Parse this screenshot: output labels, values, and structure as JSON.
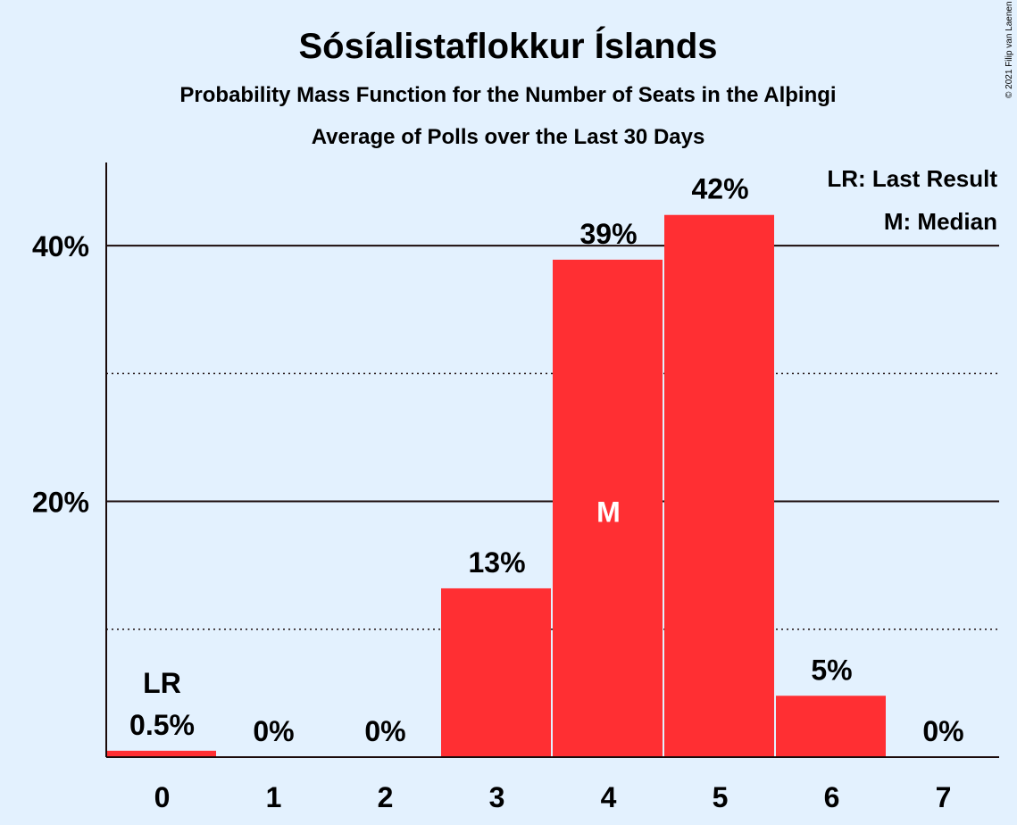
{
  "chart_data": {
    "type": "bar",
    "title": "Sósíalistaflokkur Íslands",
    "subtitle": "Probability Mass Function for the Number of Seats in the Alþingi",
    "subtitle2": "Average of Polls over the Last 30 Days",
    "categories": [
      "0",
      "1",
      "2",
      "3",
      "4",
      "5",
      "6",
      "7"
    ],
    "values": [
      0.5,
      0,
      0,
      13.2,
      38.9,
      42.4,
      4.8,
      0
    ],
    "value_labels": [
      "0.5%",
      "0%",
      "0%",
      "13%",
      "39%",
      "42%",
      "5%",
      "0%"
    ],
    "ylim": [
      0,
      46.5
    ],
    "y_ticks": [
      {
        "value": 20,
        "label": "20%"
      },
      {
        "value": 40,
        "label": "40%"
      }
    ],
    "minor_gridlines": [
      10,
      30
    ],
    "grid": true,
    "last_result_index": 0,
    "last_result_marker": "LR",
    "median_index": 4,
    "median_marker": "M",
    "legend": [
      "LR: Last Result",
      "M: Median"
    ],
    "legend_placement": "top-right",
    "bar_color": "#ff2f33",
    "copyright": "© 2021 Filip van Laenen"
  }
}
